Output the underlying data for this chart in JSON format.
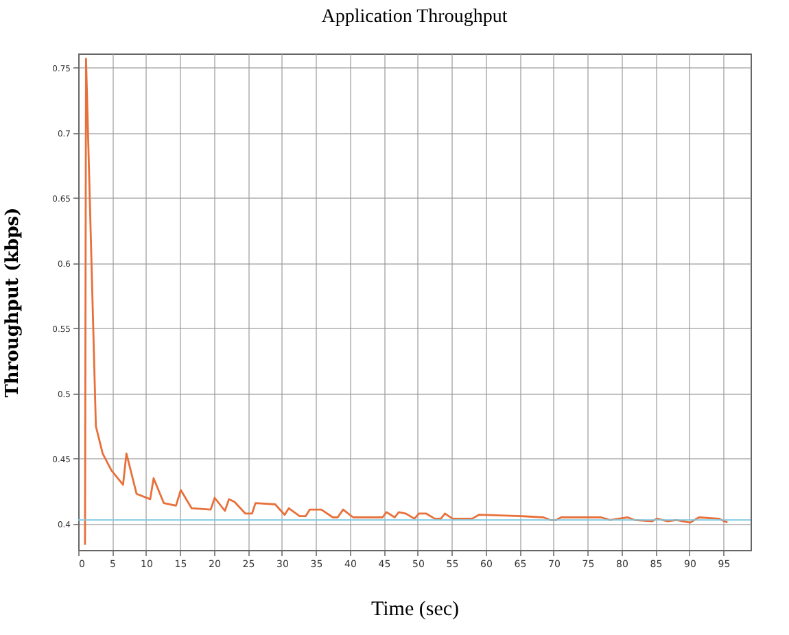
{
  "chart_data": {
    "type": "line",
    "title": "Application Throughput",
    "xlabel": "Time (sec)",
    "ylabel": "Throughput (kbps)",
    "x": [
      1.0,
      1.15,
      2.6,
      3.6,
      4.9,
      6.6,
      7.1,
      8.6,
      10.6,
      11.1,
      12.6,
      14.4,
      15.1,
      16.7,
      19.5,
      20.1,
      21.6,
      22.2,
      23.0,
      24.6,
      25.6,
      26.1,
      29.0,
      30.4,
      31.0,
      32.6,
      33.5,
      34.1,
      35.8,
      37.5,
      38.2,
      39.0,
      40.5,
      44.8,
      45.4,
      46.6,
      47.2,
      48.2,
      49.5,
      50.2,
      51.2,
      52.5,
      53.4,
      54.0,
      55.1,
      58.0,
      59.0,
      65.2,
      68.5,
      69.5,
      70.4,
      71.1,
      77.0,
      78.3,
      79.6,
      80.9,
      81.9,
      84.5,
      85.2,
      86.8,
      88.1,
      90.1,
      91.4,
      94.3,
      95.6
    ],
    "series": [
      {
        "color": "#e8703a",
        "values": [
          0.384,
          0.757,
          0.475,
          0.454,
          0.441,
          0.43,
          0.454,
          0.423,
          0.419,
          0.435,
          0.416,
          0.414,
          0.426,
          0.412,
          0.411,
          0.42,
          0.41,
          0.419,
          0.417,
          0.408,
          0.408,
          0.416,
          0.415,
          0.407,
          0.412,
          0.406,
          0.406,
          0.411,
          0.411,
          0.405,
          0.405,
          0.411,
          0.405,
          0.405,
          0.409,
          0.405,
          0.409,
          0.408,
          0.404,
          0.408,
          0.408,
          0.404,
          0.404,
          0.408,
          0.404,
          0.404,
          0.407,
          0.406,
          0.405,
          0.403,
          0.403,
          0.405,
          0.405,
          0.403,
          0.404,
          0.405,
          0.403,
          0.402,
          0.404,
          0.402,
          0.403,
          0.401,
          0.405,
          0.404,
          0.401
        ]
      }
    ],
    "xlim": [
      0,
      99
    ],
    "xticks": [
      0,
      5,
      10,
      15,
      20,
      25,
      30,
      35,
      40,
      45,
      50,
      55,
      60,
      65,
      70,
      75,
      80,
      85,
      90,
      95
    ],
    "ylim": [
      0.38,
      0.761
    ],
    "yticks": [
      0.4,
      0.45,
      0.5,
      0.55,
      0.6,
      0.65,
      0.7,
      0.75
    ],
    "ref_lines": [
      {
        "axis": "y",
        "value": 0.403,
        "color": "#7ec8e3"
      }
    ],
    "grid": true,
    "line_style": "solid"
  }
}
